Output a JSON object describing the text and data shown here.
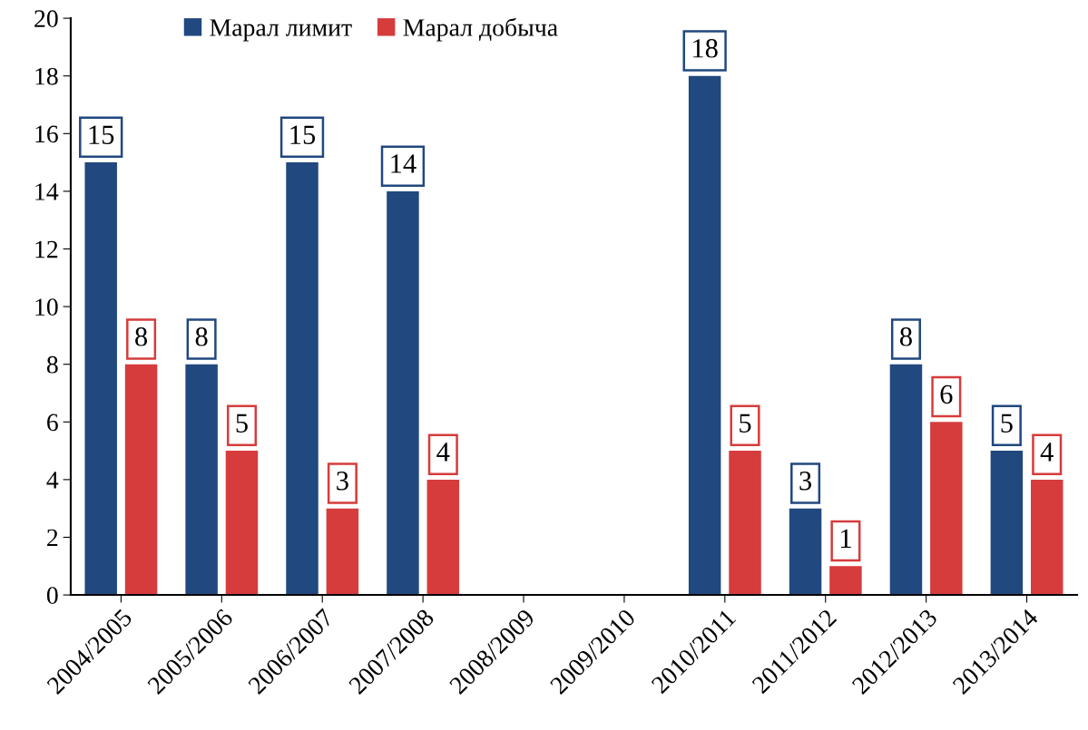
{
  "chart_data": {
    "type": "bar",
    "categories": [
      "2004/2005",
      "2005/2006",
      "2006/2007",
      "2007/2008",
      "2008/2009",
      "2009/2010",
      "2010/2011",
      "2011/2012",
      "2012/2013",
      "2013/2014"
    ],
    "series": [
      {
        "name": "Марал лимит",
        "color": "#21487f",
        "values": [
          15,
          8,
          15,
          14,
          null,
          null,
          18,
          3,
          8,
          5
        ]
      },
      {
        "name": "Марал добыча",
        "color": "#d63c3c",
        "values": [
          8,
          5,
          3,
          4,
          null,
          null,
          5,
          1,
          6,
          4
        ]
      }
    ],
    "ylim": [
      0,
      20
    ],
    "yticks": [
      0,
      2,
      4,
      6,
      8,
      10,
      12,
      14,
      16,
      18,
      20
    ],
    "grid": false,
    "legend": "top left",
    "data_labels": true
  }
}
